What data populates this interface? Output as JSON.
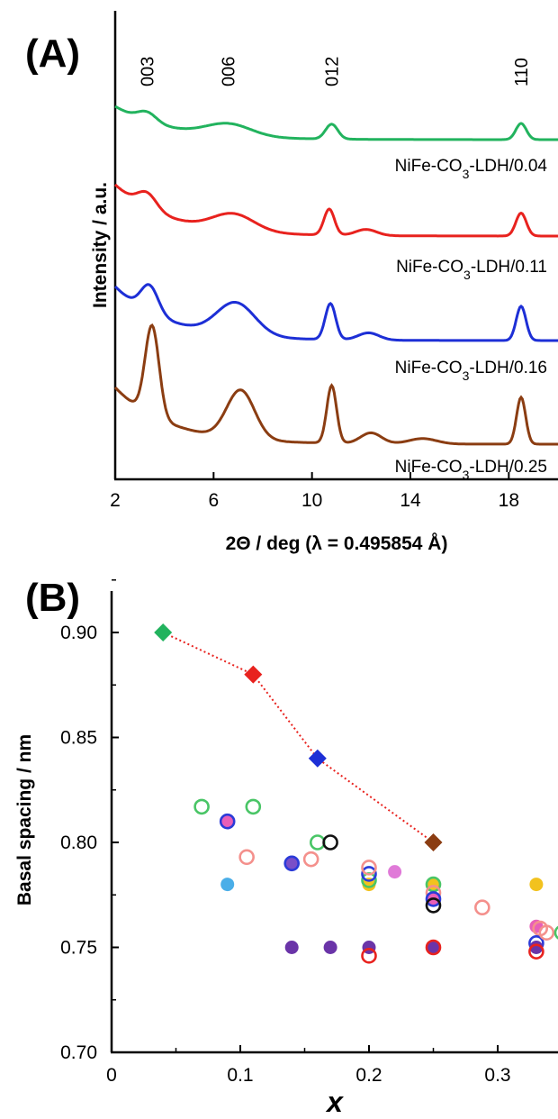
{
  "chart_data": [
    {
      "type": "line",
      "panel_label": "(A)",
      "xlabel": "2Θ / deg (λ = 0.495854 Å)",
      "ylabel": "Intensity / a.u.",
      "xlim": [
        2,
        20
      ],
      "x_ticks": [
        "2",
        "6",
        "10",
        "14",
        "18"
      ],
      "peak_labels": [
        {
          "text": "003",
          "x": 3.3
        },
        {
          "text": "006",
          "x": 6.6
        },
        {
          "text": "012",
          "x": 10.8
        },
        {
          "text": "110",
          "x": 18.5
        }
      ],
      "series": [
        {
          "name": "NiFe-CO",
          "sub": "3",
          "suffix": "-LDH/0.04",
          "color": "#22b35e",
          "peaks": [
            [
              3.3,
              0.35,
              0.55
            ],
            [
              6.6,
              0.45,
              1.3
            ],
            [
              10.8,
              0.55,
              0.35
            ],
            [
              18.5,
              0.6,
              0.3
            ]
          ]
        },
        {
          "name": "NiFe-CO",
          "sub": "3",
          "suffix": "-LDH/0.11",
          "color": "#e8221e",
          "peaks": [
            [
              3.3,
              0.5,
              0.55
            ],
            [
              6.8,
              0.55,
              1.2
            ],
            [
              10.7,
              0.85,
              0.3
            ],
            [
              12.2,
              0.2,
              0.6
            ],
            [
              18.5,
              0.75,
              0.3
            ]
          ]
        },
        {
          "name": "NiFe-CO",
          "sub": "3",
          "suffix": "-LDH/0.16",
          "color": "#1d2fd6",
          "peaks": [
            [
              3.4,
              0.75,
              0.5
            ],
            [
              6.9,
              0.9,
              1.1
            ],
            [
              10.75,
              1.0,
              0.3
            ],
            [
              12.3,
              0.2,
              0.6
            ],
            [
              18.5,
              0.95,
              0.28
            ]
          ]
        },
        {
          "name": "NiFe-CO",
          "sub": "3",
          "suffix": "-LDH/0.25",
          "color": "#8b3d12",
          "peaks": [
            [
              3.5,
              2.5,
              0.4
            ],
            [
              7.1,
              1.35,
              0.8
            ],
            [
              10.8,
              1.6,
              0.28
            ],
            [
              12.4,
              0.3,
              0.6
            ],
            [
              14.5,
              0.15,
              0.8
            ],
            [
              18.5,
              1.3,
              0.26
            ]
          ]
        }
      ]
    },
    {
      "type": "scatter",
      "panel_label": "(B)",
      "xlabel": "x",
      "ylabel": "Basal spacing / nm",
      "xlim": [
        0,
        0.35
      ],
      "ylim": [
        0.7,
        0.92
      ],
      "x_ticks": [
        0,
        0.1,
        0.2,
        0.3
      ],
      "x_tick_labels": [
        "0",
        "0.1",
        "0.2",
        "0.3"
      ],
      "y_ticks": [
        0.7,
        0.75,
        0.8,
        0.85,
        0.9
      ],
      "y_tick_labels": [
        "0.70",
        "0.75",
        "0.80",
        "0.85",
        "0.90"
      ],
      "diamonds": [
        {
          "x": 0.04,
          "y": 0.9,
          "color": "#22b35e"
        },
        {
          "x": 0.11,
          "y": 0.88,
          "color": "#e8221e"
        },
        {
          "x": 0.16,
          "y": 0.84,
          "color": "#1d2fd6"
        },
        {
          "x": 0.25,
          "y": 0.8,
          "color": "#8b3d12"
        }
      ],
      "trend_color": "#e8221e",
      "circles": [
        {
          "x": 0.07,
          "y": 0.817,
          "fill": "none",
          "stroke": "#49c566"
        },
        {
          "x": 0.11,
          "y": 0.817,
          "fill": "none",
          "stroke": "#49c566"
        },
        {
          "x": 0.09,
          "y": 0.81,
          "fill": "#e85fb8",
          "stroke": "#2b3bd8"
        },
        {
          "x": 0.09,
          "y": 0.78,
          "fill": "#4aaee8",
          "stroke": "none"
        },
        {
          "x": 0.105,
          "y": 0.793,
          "fill": "none",
          "stroke": "#f4908c"
        },
        {
          "x": 0.14,
          "y": 0.79,
          "fill": "#7a4fc8",
          "stroke": "#2b3bd8"
        },
        {
          "x": 0.155,
          "y": 0.792,
          "fill": "none",
          "stroke": "#f4908c"
        },
        {
          "x": 0.16,
          "y": 0.8,
          "fill": "none",
          "stroke": "#49c566"
        },
        {
          "x": 0.17,
          "y": 0.8,
          "fill": "none",
          "stroke": "#111111"
        },
        {
          "x": 0.14,
          "y": 0.75,
          "fill": "#6a34a8",
          "stroke": "none"
        },
        {
          "x": 0.17,
          "y": 0.75,
          "fill": "#6a34a8",
          "stroke": "none"
        },
        {
          "x": 0.2,
          "y": 0.75,
          "fill": "#6a34a8",
          "stroke": "none"
        },
        {
          "x": 0.2,
          "y": 0.746,
          "fill": "none",
          "stroke": "#e8221e"
        },
        {
          "x": 0.2,
          "y": 0.78,
          "fill": "#f2c21e",
          "stroke": "none"
        },
        {
          "x": 0.2,
          "y": 0.782,
          "fill": "none",
          "stroke": "#49c566"
        },
        {
          "x": 0.2,
          "y": 0.785,
          "fill": "none",
          "stroke": "#2b3bd8"
        },
        {
          "x": 0.2,
          "y": 0.788,
          "fill": "none",
          "stroke": "#f4908c"
        },
        {
          "x": 0.22,
          "y": 0.786,
          "fill": "#e07ad8",
          "stroke": "none"
        },
        {
          "x": 0.25,
          "y": 0.78,
          "fill": "#f2c21e",
          "stroke": "none"
        },
        {
          "x": 0.25,
          "y": 0.78,
          "fill": "none",
          "stroke": "#49c566"
        },
        {
          "x": 0.25,
          "y": 0.776,
          "fill": "none",
          "stroke": "#f4908c"
        },
        {
          "x": 0.25,
          "y": 0.773,
          "fill": "#e85fb8",
          "stroke": "#2b3bd8"
        },
        {
          "x": 0.25,
          "y": 0.77,
          "fill": "none",
          "stroke": "#111111"
        },
        {
          "x": 0.25,
          "y": 0.75,
          "fill": "#6a34a8",
          "stroke": "#e8221e"
        },
        {
          "x": 0.288,
          "y": 0.769,
          "fill": "none",
          "stroke": "#f4908c"
        },
        {
          "x": 0.33,
          "y": 0.78,
          "fill": "#f2c21e",
          "stroke": "none"
        },
        {
          "x": 0.33,
          "y": 0.76,
          "fill": "#e85fb8",
          "stroke": "none"
        },
        {
          "x": 0.333,
          "y": 0.759,
          "fill": "none",
          "stroke": "#f4908c"
        },
        {
          "x": 0.33,
          "y": 0.752,
          "fill": "none",
          "stroke": "#2b3bd8"
        },
        {
          "x": 0.33,
          "y": 0.75,
          "fill": "#6a34a8",
          "stroke": "none"
        },
        {
          "x": 0.33,
          "y": 0.748,
          "fill": "none",
          "stroke": "#e8221e"
        },
        {
          "x": 0.338,
          "y": 0.757,
          "fill": "none",
          "stroke": "#f4908c"
        },
        {
          "x": 0.35,
          "y": 0.757,
          "fill": "none",
          "stroke": "#49c566"
        }
      ]
    }
  ]
}
